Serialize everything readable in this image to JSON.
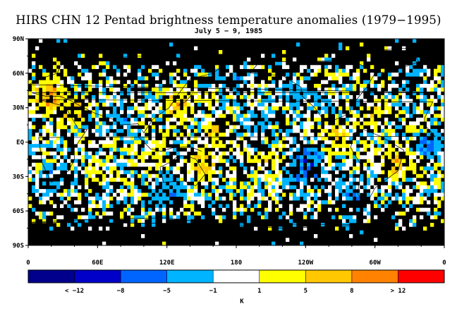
{
  "chart_data": {
    "type": "heatmap",
    "title": "HIRS CHN 12 Pentad brightness temperature anomalies (1979−1995)",
    "subtitle": "July 5 − 9, 1985",
    "x_ticks": [
      "0",
      "60E",
      "120E",
      "180",
      "120W",
      "60W",
      "0"
    ],
    "y_ticks": [
      "90N",
      "60N",
      "30N",
      "EQ",
      "30S",
      "60S",
      "90S"
    ],
    "colorbar": {
      "unit": "K",
      "labels": [
        "< −12",
        "−8",
        "−5",
        "−1",
        "1",
        "5",
        "8",
        "> 12"
      ],
      "colors": [
        "#00008c",
        "#0000c8",
        "#0064ff",
        "#00b4ff",
        "#ffffff",
        "#ffff00",
        "#ffc800",
        "#ff8200",
        "#ff0000"
      ]
    },
    "missing_color": "#000000"
  }
}
